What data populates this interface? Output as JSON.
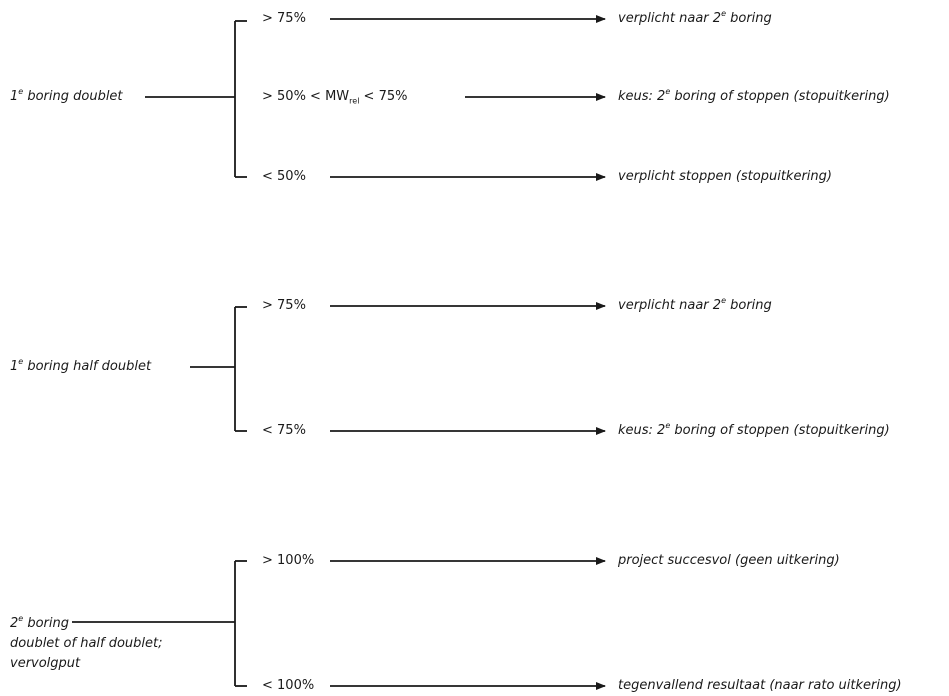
{
  "group1": {
    "source": {
      "prefix": "1",
      "sup": "e",
      "rest": " boring doublet"
    },
    "cond_top": "> 75%",
    "cond_mid": {
      "a": "> 50% < MW",
      "sub": "rel",
      "b": " < 75%"
    },
    "cond_bot": "< 50%",
    "out_top": {
      "a": "verplicht naar 2",
      "sup": "e",
      "b": " boring"
    },
    "out_mid": {
      "a": "keus: 2",
      "sup": "e",
      "b": " boring of stoppen (stopuitkering)"
    },
    "out_bot": "verplicht stoppen (stopuitkering)"
  },
  "group2": {
    "source": {
      "prefix": "1",
      "sup": "e",
      "rest": " boring half doublet"
    },
    "cond_top": "> 75%",
    "cond_bot": "< 75%",
    "out_top": {
      "a": "verplicht naar 2",
      "sup": "e",
      "b": " boring"
    },
    "out_bot": {
      "a": "keus: 2",
      "sup": "e",
      "b": " boring of stoppen (stopuitkering)"
    }
  },
  "group3": {
    "source_line1": {
      "prefix": "2",
      "sup": "e",
      "rest": " boring"
    },
    "source_line2": "doublet of half doublet;",
    "source_line3": "vervolgput",
    "cond_top": "> 100%",
    "cond_bot": "< 100%",
    "out_top": "project succesvol (geen uitkering)",
    "out_bot": "tegenvallend resultaat (naar rato uitkering)"
  },
  "colors": {
    "line": "#1a1a1a",
    "text": "#1a1a1a"
  }
}
